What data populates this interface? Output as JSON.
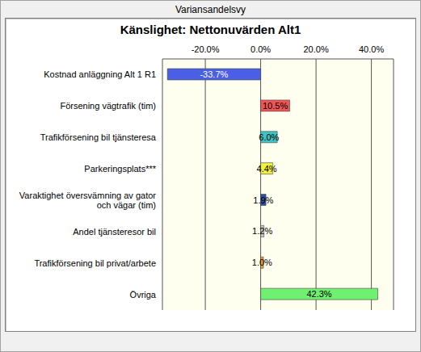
{
  "window_title": "Variansandelsvy",
  "chart_data": {
    "type": "bar",
    "orientation": "horizontal",
    "title": "Känslighet: Nettonuvärden Alt1",
    "categories": [
      "Kostnad anläggning Alt 1 R1",
      "Försening vägtrafik (tim)",
      "Trafikförsening bil tjänsteresa",
      "Parkeringsplats***",
      "Varaktighet översvämning av gator och vägar (tim)",
      "Andel tjänsteresor bil",
      "Trafikförsening bil privat/arbete",
      "Övriga"
    ],
    "values": [
      -33.7,
      10.5,
      6.0,
      4.4,
      1.9,
      1.2,
      1.0,
      42.3
    ],
    "value_labels": [
      "-33.7%",
      "10.5%",
      "6.0%",
      "4.4%",
      "1.9%",
      "1.2%",
      "1.0%",
      "42.3%"
    ],
    "colors": [
      "#4a5fe6",
      "#f05656",
      "#3fc4c4",
      "#f2f23c",
      "#3050a8",
      "#c8c8c8",
      "#f0a030",
      "#6ff070"
    ],
    "xlim": [
      -35.5,
      48
    ],
    "xticks": [
      {
        "value": -20,
        "label": "-20.0%"
      },
      {
        "value": 0,
        "label": "0.0%"
      },
      {
        "value": 20,
        "label": "20.0%"
      },
      {
        "value": 40,
        "label": "40.0%"
      }
    ],
    "grid": true,
    "data_labels": true
  }
}
